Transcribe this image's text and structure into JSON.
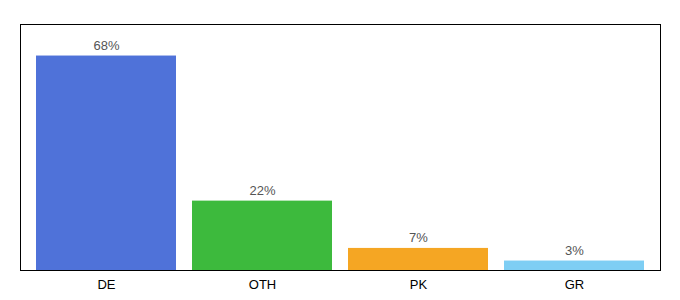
{
  "chart_data": {
    "type": "bar",
    "categories": [
      "DE",
      "OTH",
      "PK",
      "GR"
    ],
    "values": [
      68,
      22,
      7,
      3
    ],
    "value_labels": [
      "68%",
      "22%",
      "7%",
      "3%"
    ],
    "data_labels": true,
    "colors": [
      "#4f72d9",
      "#3dba3d",
      "#f5a623",
      "#7ecef4"
    ],
    "ylim": [
      0,
      78
    ],
    "grid": false,
    "tick_labels": "x"
  }
}
